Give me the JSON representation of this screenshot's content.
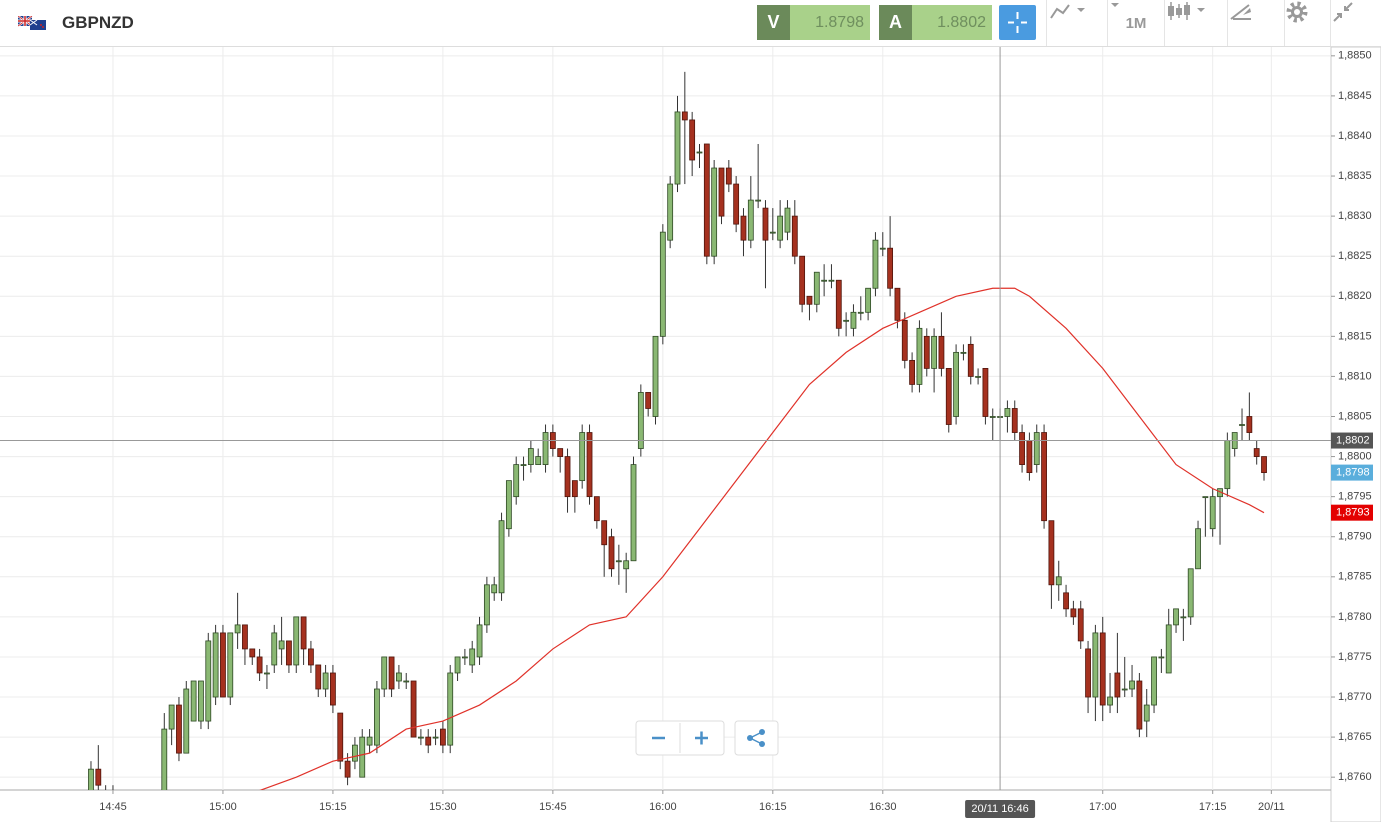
{
  "header": {
    "symbol": "GBPNZD",
    "bid": {
      "letter": "V",
      "value": 1.8798
    },
    "ask": {
      "letter": "A",
      "value": 1.8802
    },
    "timeframe": "1M"
  },
  "chart_data": {
    "type": "candlestick",
    "up_color": "#8ab873",
    "down_color": "#a5311f",
    "x": [
      "14:42",
      "14:43",
      "14:44",
      "14:45",
      "14:52",
      "14:53",
      "14:54",
      "14:55",
      "14:56",
      "14:57",
      "14:58",
      "14:59",
      "15:00",
      "15:01",
      "15:02",
      "15:03",
      "15:04",
      "15:05",
      "15:06",
      "15:07",
      "15:08",
      "15:09",
      "15:10",
      "15:11",
      "15:12",
      "15:13",
      "15:14",
      "15:15",
      "15:16",
      "15:17",
      "15:18",
      "15:19",
      "15:20",
      "15:21",
      "15:22",
      "15:23",
      "15:24",
      "15:25",
      "15:26",
      "15:27",
      "15:28",
      "15:29",
      "15:30",
      "15:31",
      "15:32",
      "15:33",
      "15:34",
      "15:35",
      "15:36",
      "15:37",
      "15:38",
      "15:39",
      "15:40",
      "15:41",
      "15:42",
      "15:43",
      "15:44",
      "15:45",
      "15:46",
      "15:47",
      "15:48",
      "15:49",
      "15:50",
      "15:51",
      "15:52",
      "15:53",
      "15:54",
      "15:55",
      "15:56",
      "15:57",
      "15:58",
      "15:59",
      "16:00",
      "16:01",
      "16:02",
      "16:03",
      "16:04",
      "16:05",
      "16:06",
      "16:07",
      "16:08",
      "16:09",
      "16:10",
      "16:11",
      "16:12",
      "16:13",
      "16:14",
      "16:15",
      "16:16",
      "16:17",
      "16:18",
      "16:19",
      "16:20",
      "16:21",
      "16:22",
      "16:23",
      "16:24",
      "16:25",
      "16:26",
      "16:27",
      "16:28",
      "16:29",
      "16:30",
      "16:31",
      "16:32",
      "16:33",
      "16:34",
      "16:35",
      "16:36",
      "16:37",
      "16:38",
      "16:39",
      "16:40",
      "16:41",
      "16:42",
      "16:43",
      "16:44",
      "16:45",
      "16:46",
      "16:47",
      "16:48",
      "16:49",
      "16:50",
      "16:51",
      "16:52",
      "16:53",
      "16:54",
      "16:55",
      "16:56",
      "16:57",
      "16:58",
      "16:59",
      "17:00",
      "17:01",
      "17:02",
      "17:03",
      "17:04",
      "17:05",
      "17:06",
      "17:07",
      "17:08",
      "17:09",
      "17:10",
      "17:11",
      "17:12",
      "17:13",
      "17:14",
      "17:15",
      "17:16",
      "17:17",
      "17:18",
      "17:19",
      "17:20",
      "17:21",
      "17:22"
    ],
    "open": [
      1.8758,
      1.8761,
      1.8758,
      1.8758,
      1.8757,
      1.8766,
      1.8769,
      1.8763,
      1.8767,
      1.8767,
      1.8767,
      1.877,
      1.8778,
      1.877,
      1.8778,
      1.8779,
      1.8776,
      1.8775,
      1.8773,
      1.8774,
      1.8776,
      1.8777,
      1.8774,
      1.878,
      1.8776,
      1.8774,
      1.8771,
      1.8773,
      1.8768,
      1.8762,
      1.8762,
      1.876,
      1.8764,
      1.8764,
      1.8771,
      1.8775,
      1.8772,
      1.8772,
      1.8772,
      1.8765,
      1.8765,
      1.8765,
      1.8766,
      1.8764,
      1.8773,
      1.8775,
      1.8774,
      1.8775,
      1.8779,
      1.8783,
      1.8783,
      1.8791,
      1.8795,
      1.8799,
      1.8799,
      1.8799,
      1.8799,
      1.8803,
      1.8801,
      1.88,
      1.8797,
      1.8797,
      1.8803,
      1.8795,
      1.8792,
      1.879,
      1.8787,
      1.8786,
      1.8787,
      1.8801,
      1.8808,
      1.8805,
      1.8815,
      1.8827,
      1.8834,
      1.8843,
      1.8842,
      1.8838,
      1.8839,
      1.8825,
      1.8836,
      1.8836,
      1.8834,
      1.883,
      1.8827,
      1.8832,
      1.8831,
      1.8828,
      1.8827,
      1.8828,
      1.883,
      1.8825,
      1.882,
      1.8819,
      1.8822,
      1.8822,
      1.8822,
      1.8817,
      1.8816,
      1.8818,
      1.8818,
      1.8821,
      1.8826,
      1.8826,
      1.8821,
      1.8817,
      1.8812,
      1.8809,
      1.8815,
      1.8811,
      1.8815,
      1.8811,
      1.8805,
      1.8813,
      1.8814,
      1.881,
      1.8811,
      1.8805,
      1.8805,
      1.8805,
      1.8806,
      1.8803,
      1.8802,
      1.8799,
      1.8803,
      1.8792,
      1.8784,
      1.8783,
      1.8781,
      1.8781,
      1.8776,
      1.877,
      1.8778,
      1.8769,
      1.8773,
      1.8771,
      1.8771,
      1.8772,
      1.8767,
      1.8769,
      1.8775,
      1.8773,
      1.8779,
      1.878,
      1.878,
      1.8786,
      1.8795,
      1.8791,
      1.8795,
      1.8796,
      1.8801,
      1.8804,
      1.8805,
      1.8801,
      1.88
    ],
    "high": [
      1.8762,
      1.8764,
      1.8759,
      1.8759,
      1.8768,
      1.8769,
      1.877,
      1.8772,
      1.8772,
      1.8772,
      1.8778,
      1.8779,
      1.8779,
      1.8778,
      1.8783,
      1.8779,
      1.8776,
      1.8776,
      1.8774,
      1.8779,
      1.878,
      1.8777,
      1.878,
      1.878,
      1.8777,
      1.8774,
      1.8774,
      1.8774,
      1.8768,
      1.8763,
      1.8765,
      1.8766,
      1.8766,
      1.8772,
      1.8775,
      1.8775,
      1.8774,
      1.8773,
      1.8772,
      1.8766,
      1.8766,
      1.8766,
      1.8767,
      1.8774,
      1.8775,
      1.8776,
      1.8777,
      1.878,
      1.8785,
      1.8785,
      1.8793,
      1.8797,
      1.88,
      1.88,
      1.8802,
      1.8801,
      1.8804,
      1.8804,
      1.8801,
      1.8801,
      1.8797,
      1.8804,
      1.8804,
      1.8795,
      1.8792,
      1.8791,
      1.8789,
      1.8788,
      1.88,
      1.8809,
      1.8808,
      1.8815,
      1.8829,
      1.8835,
      1.8845,
      1.8848,
      1.8843,
      1.8839,
      1.8839,
      1.8837,
      1.8836,
      1.8837,
      1.8835,
      1.8831,
      1.8835,
      1.8839,
      1.8832,
      1.8831,
      1.8832,
      1.8832,
      1.8832,
      1.8825,
      1.882,
      1.8823,
      1.8824,
      1.8824,
      1.8822,
      1.8818,
      1.8819,
      1.882,
      1.8821,
      1.8828,
      1.8828,
      1.883,
      1.8821,
      1.8818,
      1.8813,
      1.8817,
      1.8816,
      1.8816,
      1.8818,
      1.8811,
      1.8814,
      1.8814,
      1.8815,
      1.8811,
      1.8811,
      1.8806,
      1.8806,
      1.8807,
      1.8807,
      1.8804,
      1.8803,
      1.8804,
      1.8804,
      1.8792,
      1.8787,
      1.8784,
      1.8782,
      1.8782,
      1.8777,
      1.8779,
      1.878,
      1.8773,
      1.8778,
      1.8775,
      1.8774,
      1.8773,
      1.8771,
      1.8775,
      1.8776,
      1.8781,
      1.8781,
      1.8781,
      1.8786,
      1.8792,
      1.8795,
      1.8796,
      1.8796,
      1.8803,
      1.8803,
      1.8806,
      1.8808,
      1.8802,
      1.88
    ],
    "low": [
      1.8757,
      1.8757,
      1.8757,
      1.8757,
      1.8756,
      1.8764,
      1.8762,
      1.8763,
      1.8767,
      1.8766,
      1.8766,
      1.8769,
      1.877,
      1.8769,
      1.8776,
      1.8774,
      1.8774,
      1.8772,
      1.8771,
      1.8773,
      1.8774,
      1.8773,
      1.8773,
      1.8774,
      1.8773,
      1.877,
      1.877,
      1.8768,
      1.8761,
      1.8759,
      1.8761,
      1.876,
      1.8763,
      1.8763,
      1.877,
      1.877,
      1.8771,
      1.8771,
      1.8765,
      1.8764,
      1.8763,
      1.8764,
      1.8763,
      1.8763,
      1.8772,
      1.8774,
      1.8773,
      1.8774,
      1.8778,
      1.8782,
      1.8782,
      1.879,
      1.8794,
      1.8797,
      1.8798,
      1.8799,
      1.8798,
      1.88,
      1.8798,
      1.8793,
      1.8793,
      1.8796,
      1.8794,
      1.8791,
      1.8785,
      1.8785,
      1.8784,
      1.8783,
      1.8787,
      1.88,
      1.8805,
      1.8804,
      1.8814,
      1.8826,
      1.8833,
      1.8834,
      1.8835,
      1.8836,
      1.8824,
      1.8824,
      1.8829,
      1.8833,
      1.8828,
      1.8825,
      1.8826,
      1.8831,
      1.8821,
      1.8827,
      1.8826,
      1.8827,
      1.8824,
      1.8818,
      1.8817,
      1.8818,
      1.882,
      1.8821,
      1.8815,
      1.8815,
      1.8815,
      1.8817,
      1.8817,
      1.882,
      1.8825,
      1.882,
      1.8816,
      1.8811,
      1.8808,
      1.8808,
      1.881,
      1.8808,
      1.881,
      1.8803,
      1.8804,
      1.8812,
      1.8809,
      1.8809,
      1.8804,
      1.8802,
      1.8802,
      1.8803,
      1.8802,
      1.8798,
      1.8797,
      1.8798,
      1.8791,
      1.8781,
      1.8782,
      1.878,
      1.8779,
      1.8776,
      1.8768,
      1.8767,
      1.8767,
      1.8768,
      1.8768,
      1.877,
      1.877,
      1.8765,
      1.8765,
      1.8768,
      1.8773,
      1.8773,
      1.8778,
      1.8777,
      1.8779,
      1.8786,
      1.879,
      1.879,
      1.8789,
      1.8795,
      1.88,
      1.8802,
      1.8802,
      1.8799,
      1.8797
    ],
    "close": [
      1.8761,
      1.8759,
      1.8758,
      1.8758,
      1.8766,
      1.8769,
      1.8763,
      1.8771,
      1.8772,
      1.8772,
      1.8777,
      1.8778,
      1.877,
      1.8778,
      1.8779,
      1.8776,
      1.8775,
      1.8773,
      1.8773,
      1.8778,
      1.8777,
      1.8774,
      1.878,
      1.8776,
      1.8774,
      1.8771,
      1.8773,
      1.8769,
      1.8762,
      1.876,
      1.8764,
      1.8765,
      1.8765,
      1.8771,
      1.8775,
      1.8771,
      1.8773,
      1.8772,
      1.8765,
      1.8765,
      1.8764,
      1.8765,
      1.8764,
      1.8773,
      1.8775,
      1.8775,
      1.8776,
      1.8779,
      1.8784,
      1.8784,
      1.8792,
      1.8797,
      1.8799,
      1.8799,
      1.8801,
      1.88,
      1.8803,
      1.8801,
      1.88,
      1.8795,
      1.8795,
      1.8803,
      1.8795,
      1.8792,
      1.8789,
      1.8786,
      1.8787,
      1.8787,
      1.8799,
      1.8808,
      1.8806,
      1.8815,
      1.8828,
      1.8834,
      1.8843,
      1.8842,
      1.8837,
      1.8838,
      1.8825,
      1.8836,
      1.883,
      1.8834,
      1.8829,
      1.8827,
      1.8832,
      1.8832,
      1.8827,
      1.8828,
      1.883,
      1.8831,
      1.8825,
      1.8819,
      1.8819,
      1.8823,
      1.8822,
      1.8822,
      1.8816,
      1.8817,
      1.8818,
      1.8818,
      1.8821,
      1.8827,
      1.8826,
      1.8821,
      1.8817,
      1.8812,
      1.8809,
      1.8816,
      1.8811,
      1.8815,
      1.8811,
      1.8804,
      1.8813,
      1.8813,
      1.881,
      1.881,
      1.8805,
      1.8805,
      1.8805,
      1.8806,
      1.8803,
      1.8799,
      1.8798,
      1.8803,
      1.8792,
      1.8784,
      1.8785,
      1.8781,
      1.878,
      1.8777,
      1.877,
      1.8778,
      1.8769,
      1.877,
      1.877,
      1.8771,
      1.8772,
      1.8766,
      1.8769,
      1.8775,
      1.8775,
      1.8779,
      1.8781,
      1.878,
      1.8786,
      1.8791,
      1.8795,
      1.8795,
      1.8796,
      1.8802,
      1.8803,
      1.8804,
      1.8803,
      1.88,
      1.8798
    ],
    "ma": {
      "color": "#e0322a",
      "x": [
        "15:04",
        "15:10",
        "15:15",
        "15:20",
        "15:25",
        "15:30",
        "15:35",
        "15:40",
        "15:45",
        "15:50",
        "15:55",
        "16:00",
        "16:05",
        "16:10",
        "16:15",
        "16:20",
        "16:25",
        "16:30",
        "16:35",
        "16:40",
        "16:45",
        "16:48",
        "16:50",
        "16:55",
        "17:00",
        "17:05",
        "17:10",
        "17:15",
        "17:20",
        "17:22"
      ],
      "values": [
        1.8758,
        1.876,
        1.8762,
        1.8763,
        1.8766,
        1.8767,
        1.8769,
        1.8772,
        1.8776,
        1.8779,
        1.878,
        1.8785,
        1.8791,
        1.8797,
        1.8803,
        1.8809,
        1.8813,
        1.8816,
        1.8818,
        1.882,
        1.8821,
        1.8821,
        1.882,
        1.8816,
        1.8811,
        1.8805,
        1.8799,
        1.8796,
        1.8794,
        1.8793
      ]
    },
    "xlim": [
      "14:30",
      "17:31"
    ],
    "xticks": [
      "14:45",
      "15:00",
      "15:15",
      "15:30",
      "15:45",
      "16:00",
      "16:15",
      "16:30",
      "17:00",
      "17:15",
      {
        "value": "17:23",
        "label": "20/11"
      }
    ],
    "ylim": [
      1.87584,
      1.88511
    ],
    "yticks": [
      {
        "value": 1.876,
        "label": "1,8760"
      },
      {
        "value": 1.8765,
        "label": "1,8765"
      },
      {
        "value": 1.877,
        "label": "1,8770"
      },
      {
        "value": 1.8775,
        "label": "1,8775"
      },
      {
        "value": 1.878,
        "label": "1,8780"
      },
      {
        "value": 1.8785,
        "label": "1,8785"
      },
      {
        "value": 1.879,
        "label": "1,8790"
      },
      {
        "value": 1.8795,
        "label": "1,8795"
      },
      {
        "value": 1.88,
        "label": "1,8800"
      },
      {
        "value": 1.8805,
        "label": "1,8805"
      },
      {
        "value": 1.881,
        "label": "1,8810"
      },
      {
        "value": 1.8815,
        "label": "1,8815"
      },
      {
        "value": 1.882,
        "label": "1,8820"
      },
      {
        "value": 1.8825,
        "label": "1,8825"
      },
      {
        "value": 1.883,
        "label": "1,8830"
      },
      {
        "value": 1.8835,
        "label": "1,8835"
      },
      {
        "value": 1.884,
        "label": "1,8840"
      },
      {
        "value": 1.8845,
        "label": "1,8845"
      },
      {
        "value": 1.885,
        "label": "1,8850"
      }
    ],
    "grid": true,
    "price_tags": [
      {
        "value": 1.8798,
        "label": "1,8798",
        "color": "#5aaedc"
      },
      {
        "value": 1.8793,
        "label": "1,8793",
        "color": "#e30000"
      }
    ],
    "crosshair": {
      "x": {
        "value": "16:46",
        "label": "20/11 16:46"
      },
      "y": {
        "value": 1.8802,
        "label": "1,8802"
      }
    }
  }
}
